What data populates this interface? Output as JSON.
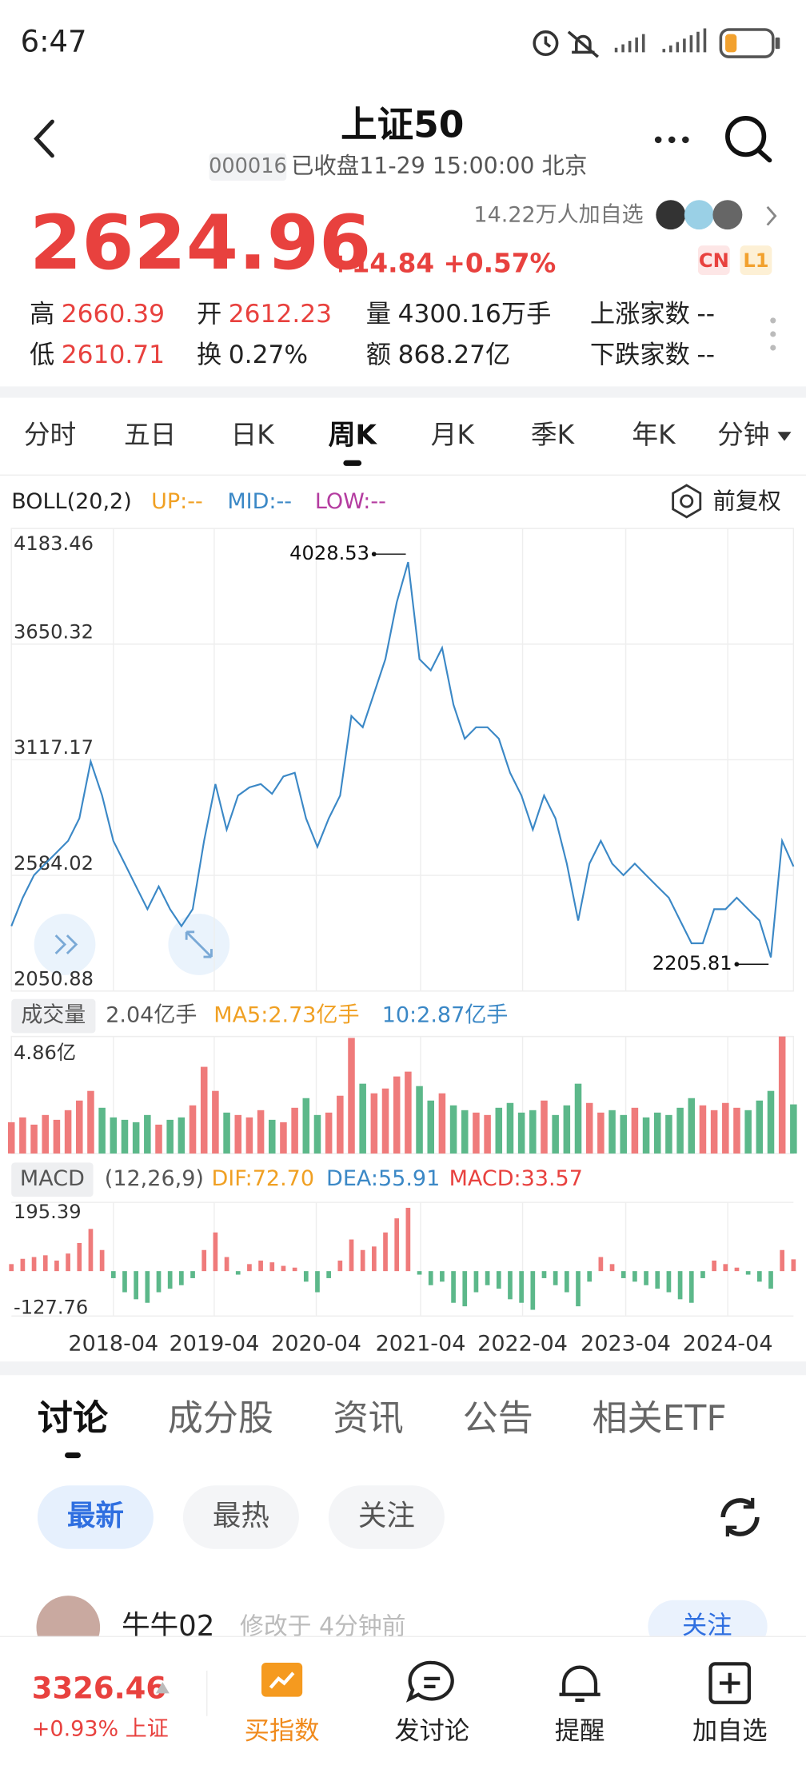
{
  "status_bar": {
    "time": "6:47"
  },
  "header": {
    "title": "上证50",
    "code": "000016",
    "status": "已收盘11-29 15:00:00 北京",
    "followers": "14.22万人加自选"
  },
  "quote": {
    "price": "2624.96",
    "change": "+14.84 +0.57%",
    "badges": [
      "CN",
      "L1"
    ],
    "stats": [
      {
        "label": "高",
        "value": "2660.39"
      },
      {
        "label": "开",
        "value": "2612.23"
      },
      {
        "label": "量",
        "value": "4300.16万手"
      },
      {
        "label": "上涨家数",
        "value": "--"
      },
      {
        "label": "低",
        "value": "2610.71"
      },
      {
        "label": "换",
        "value": "0.27%"
      },
      {
        "label": "额",
        "value": "868.27亿"
      },
      {
        "label": "下跌家数",
        "value": "--"
      }
    ]
  },
  "period_tabs": {
    "items": [
      "分时",
      "五日",
      "日K",
      "周K",
      "月K",
      "季K",
      "年K",
      "分钟"
    ],
    "active": 3
  },
  "kline": {
    "indicator": "BOLL(20,2)",
    "up": "UP:--",
    "mid": "MID:--",
    "low": "LOW:--",
    "adjust": "前复权",
    "ylim": [
      2050.88,
      4183.46
    ],
    "yticks": [
      4183.46,
      3650.32,
      3117.17,
      2584.02,
      2050.88
    ],
    "xticks": [
      {
        "value": 9,
        "label": "2018-04"
      },
      {
        "value": 17.9,
        "label": "2019-04"
      },
      {
        "value": 26.9,
        "label": "2020-04"
      },
      {
        "value": 36.1,
        "label": "2021-04"
      },
      {
        "value": 45.1,
        "label": "2022-04"
      },
      {
        "value": 54.2,
        "label": "2023-04"
      },
      {
        "value": 63.2,
        "label": "2024-04"
      }
    ],
    "values": [
      2350,
      2481,
      2585,
      2638,
      2690,
      2743,
      2847,
      3109,
      2952,
      2743,
      2638,
      2533,
      2428,
      2533,
      2428,
      2350,
      2428,
      2743,
      3005,
      2795,
      2952,
      2990,
      3005,
      2960,
      3040,
      3057,
      2847,
      2716,
      2847,
      2952,
      3319,
      3267,
      3424,
      3581,
      3843,
      4028.53,
      3581,
      3529,
      3633,
      3371,
      3214,
      3267,
      3267,
      3214,
      3057,
      2952,
      2795,
      2952,
      2847,
      2638,
      2376,
      2638,
      2743,
      2638,
      2585,
      2638,
      2585,
      2533,
      2481,
      2376,
      2271,
      2271,
      2428,
      2428,
      2481,
      2428,
      2376,
      2205.81,
      2743,
      2624.96
    ],
    "max_index": 35,
    "min_index": 67
  },
  "volume": {
    "title": "成交量",
    "current": "2.04亿手",
    "ma5": "MA5:2.73亿手",
    "ma10": "10:2.87亿手",
    "ylim": [
      0,
      4.86
    ],
    "yticks": [
      {
        "value": 4.86,
        "label": "4.86亿"
      }
    ],
    "values": [
      1.3,
      1.5,
      1.2,
      1.6,
      1.4,
      1.8,
      2.2,
      2.6,
      1.9,
      1.5,
      1.4,
      1.3,
      1.6,
      1.2,
      1.4,
      1.5,
      2.0,
      3.6,
      2.6,
      1.7,
      1.6,
      1.5,
      1.8,
      1.4,
      1.3,
      1.9,
      2.3,
      1.6,
      1.7,
      2.4,
      4.8,
      2.9,
      2.5,
      2.7,
      3.2,
      3.4,
      2.8,
      2.2,
      2.5,
      2.0,
      1.8,
      1.7,
      1.6,
      1.9,
      2.1,
      1.7,
      1.8,
      2.2,
      1.6,
      2.0,
      2.9,
      2.1,
      1.7,
      1.8,
      1.6,
      1.9,
      1.5,
      1.7,
      1.6,
      1.9,
      2.3,
      2.0,
      1.8,
      2.1,
      1.9,
      1.8,
      2.2,
      2.6,
      4.86,
      2.04
    ]
  },
  "macd": {
    "title": "MACD",
    "params": "(12,26,9)",
    "dif": "DIF:72.70",
    "dea": "DEA:55.91",
    "macd": "MACD:33.57",
    "ylim": [
      -127.76,
      195.39
    ],
    "yticks": [
      195.39,
      -127.76
    ],
    "values": [
      20,
      35,
      40,
      45,
      30,
      50,
      80,
      120,
      60,
      -20,
      -60,
      -80,
      -90,
      -60,
      -50,
      -40,
      -20,
      60,
      110,
      40,
      -10,
      20,
      30,
      25,
      15,
      10,
      -30,
      -60,
      -20,
      30,
      90,
      60,
      70,
      110,
      150,
      180,
      -10,
      -40,
      -30,
      -90,
      -100,
      -60,
      -40,
      -50,
      -80,
      -90,
      -110,
      -20,
      -40,
      -60,
      -100,
      -30,
      40,
      20,
      -20,
      -30,
      -40,
      -50,
      -60,
      -80,
      -90,
      -20,
      30,
      20,
      10,
      -10,
      -30,
      -50,
      60,
      33.57
    ]
  },
  "content_tabs": {
    "items": [
      "讨论",
      "成分股",
      "资讯",
      "公告",
      "相关ETF"
    ],
    "active": 0
  },
  "filters": {
    "items": [
      "最新",
      "最热",
      "关注"
    ],
    "active": 0
  },
  "post": {
    "user": "牛牛02",
    "time": "修改于 4分钟前",
    "follow": "关注"
  },
  "bottom_bar": {
    "index_price": "3326.46",
    "index_change": "+0.93% 上证",
    "actions": [
      "买指数",
      "发讨论",
      "提醒",
      "加自选"
    ]
  }
}
